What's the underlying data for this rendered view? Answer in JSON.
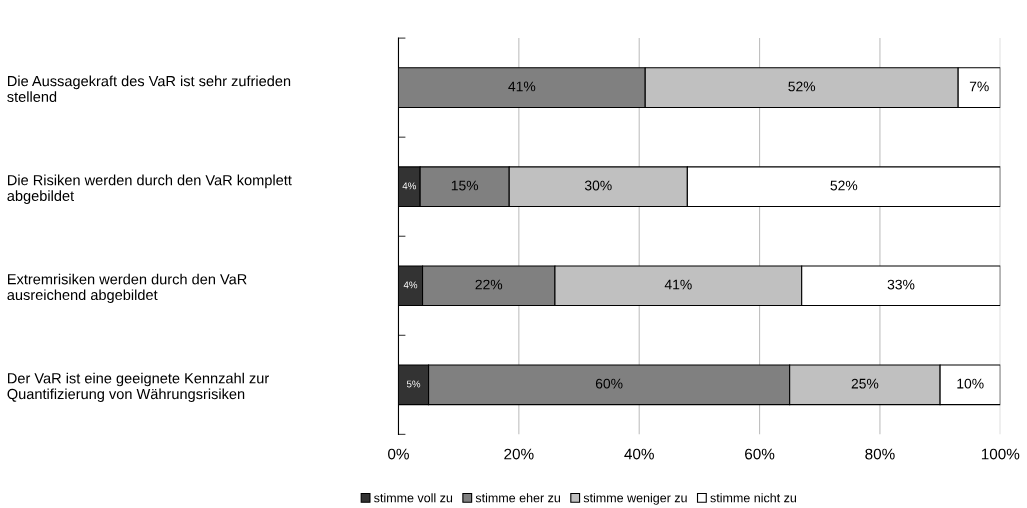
{
  "chart_data": {
    "type": "bar",
    "orientation": "horizontal",
    "stacked": true,
    "categories": [
      "Die Aussagekraft des VaR ist sehr zufrieden\nstellend",
      "Die Risiken werden durch den VaR komplett\nabgebildet",
      "Extremrisiken werden durch den VaR\nausreichend abgebildet",
      "Der VaR ist eine geeignete Kennzahl zur\nQuantifizierung von Währungsrisiken"
    ],
    "series": [
      {
        "name": "stimme voll zu",
        "color": "#333333",
        "values": [
          0,
          3.6,
          4,
          5
        ],
        "value_labels": [
          null,
          "4%",
          "4%",
          "5%"
        ]
      },
      {
        "name": "stimme eher zu",
        "color": "#808080",
        "values": [
          41,
          14.8,
          22,
          60
        ],
        "value_labels": [
          "41%",
          "15%",
          "22%",
          "60%"
        ]
      },
      {
        "name": "stimme weniger zu",
        "color": "#c0c0c0",
        "values": [
          52,
          29.6,
          41,
          25
        ],
        "value_labels": [
          "52%",
          "30%",
          "41%",
          "25%"
        ]
      },
      {
        "name": "stimme nicht zu",
        "color": "#ffffff",
        "values": [
          7,
          52,
          33,
          10
        ],
        "value_labels": [
          "7%",
          "52%",
          "33%",
          "10%"
        ]
      }
    ],
    "xlim": [
      0,
      100
    ],
    "xticks": [
      {
        "value": 0,
        "label": "0%"
      },
      {
        "value": 20,
        "label": "20%"
      },
      {
        "value": 40,
        "label": "40%"
      },
      {
        "value": 60,
        "label": "60%"
      },
      {
        "value": 80,
        "label": "80%"
      },
      {
        "value": 100,
        "label": "100%"
      }
    ],
    "grid": "x",
    "legend": "bottom"
  }
}
